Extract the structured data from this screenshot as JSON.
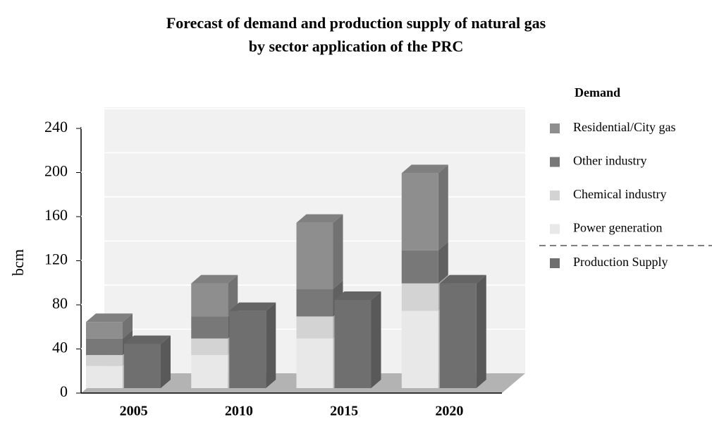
{
  "chart_data": {
    "type": "stacked-bar-3d",
    "title_lines": [
      "Forecast of demand and production supply of natural gas",
      "by sector application of the PRC"
    ],
    "y_label": "bcm",
    "categories": [
      "2005",
      "2010",
      "2015",
      "2020"
    ],
    "ylim": [
      0,
      240
    ],
    "yticks": [
      0,
      40,
      80,
      120,
      160,
      200,
      240
    ],
    "grid": true,
    "stacks": [
      {
        "name": "Demand",
        "series": [
          {
            "name": "Power generation",
            "color": "#e8e8e8",
            "values": [
              20,
              30,
              45,
              70
            ]
          },
          {
            "name": "Chemical industry",
            "color": "#d3d3d3",
            "values": [
              10,
              15,
              20,
              25
            ]
          },
          {
            "name": "Other industry",
            "color": "#787878",
            "values": [
              15,
              20,
              25,
              30
            ]
          },
          {
            "name": "Residential/City gas",
            "color": "#8e8e8e",
            "values": [
              15,
              30,
              60,
              70
            ]
          }
        ]
      },
      {
        "series": [
          {
            "name": "Production Supply",
            "color": "#6f6f6f",
            "values": [
              40,
              70,
              80,
              95
            ]
          }
        ]
      }
    ]
  }
}
